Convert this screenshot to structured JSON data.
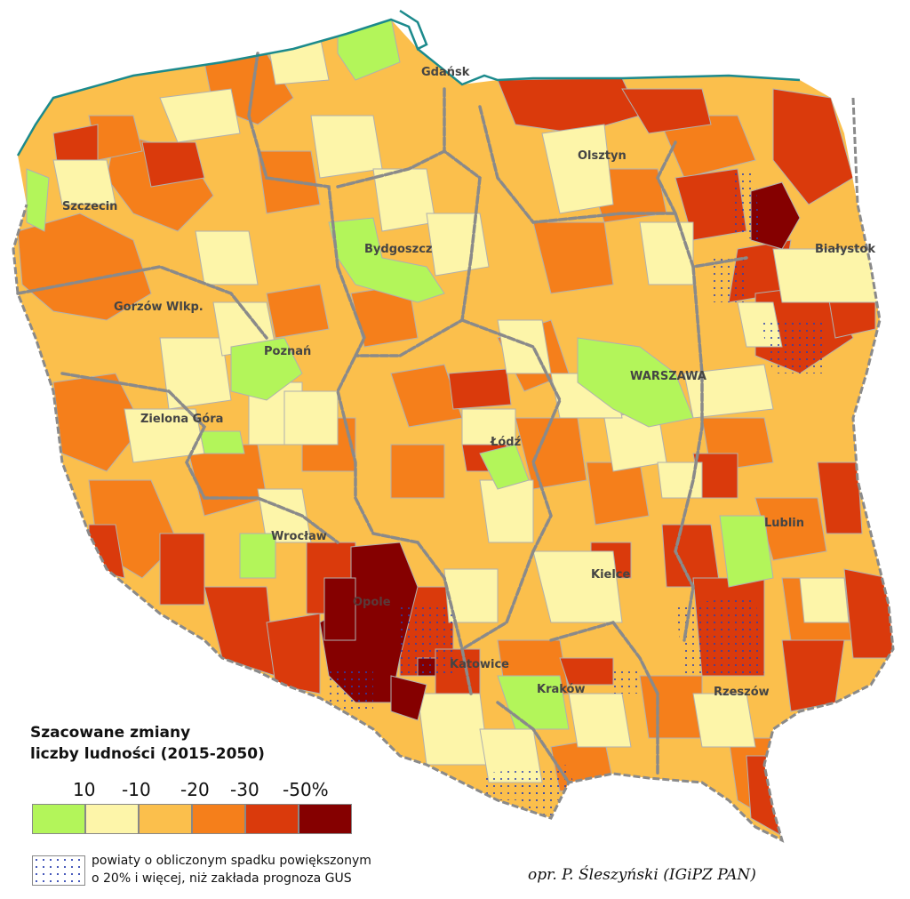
{
  "colors": {
    "c_plus10": "#b3f55a",
    "c_minus10": "#fdf5a9",
    "c_minus20": "#fbbf4c",
    "c_minus30": "#f57f1b",
    "c_minus40": "#da3a0c",
    "c_minus50": "#850000",
    "border": "#8a8a8a",
    "coast": "#1c8a8c",
    "dots": "#2a3fb0"
  },
  "cities": [
    {
      "name": "Gdańsk"
    },
    {
      "name": "Olsztyn"
    },
    {
      "name": "Szczecin"
    },
    {
      "name": "Bydgoszcz"
    },
    {
      "name": "Białystok"
    },
    {
      "name": "Gorzów Wlkp."
    },
    {
      "name": "Poznań"
    },
    {
      "name": "WARSZAWA"
    },
    {
      "name": "Zielona Góra"
    },
    {
      "name": "Łódź"
    },
    {
      "name": "Lublin"
    },
    {
      "name": "Wrocław"
    },
    {
      "name": "Kielce"
    },
    {
      "name": "Opole"
    },
    {
      "name": "Katowice"
    },
    {
      "name": "Kraków"
    },
    {
      "name": "Rzeszów"
    }
  ],
  "legend": {
    "title_line1": "Szacowane zmiany",
    "title_line2": "liczby ludności (2015-2050)",
    "ticks": [
      "10",
      "-10",
      "-20",
      "-30",
      "-50%"
    ],
    "dotted_line1": "powiaty o obliczonym spadku powiększonym",
    "dotted_line2": "o 20% i więcej, niż zakłada prognoza GUS"
  },
  "author": "opr. P. Śleszyński (IGiPZ PAN)"
}
